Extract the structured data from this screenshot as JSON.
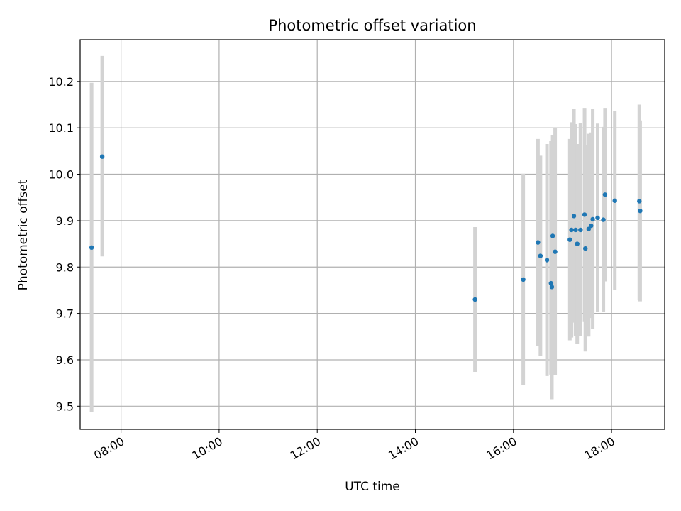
{
  "chart_data": {
    "type": "scatter",
    "title": "Photometric offset variation",
    "xlabel": "UTC time",
    "ylabel": "Photometric offset",
    "x_is_time": true,
    "xlim": [
      "07:10",
      "19:05"
    ],
    "ylim": [
      9.45,
      10.29
    ],
    "xticks": [
      "08:00",
      "10:00",
      "12:00",
      "14:00",
      "16:00",
      "18:00"
    ],
    "yticks": [
      "9.5",
      "9.6",
      "9.7",
      "9.8",
      "9.9",
      "10.0",
      "10.1",
      "10.2"
    ],
    "grid": true,
    "colors": {
      "point": "#1f77b4",
      "errorbar": "#d3d3d3",
      "grid": "#b0b0b0",
      "axes": "#000000"
    },
    "points": [
      {
        "t": "07:24",
        "y": 9.842,
        "lo": 9.487,
        "hi": 10.197
      },
      {
        "t": "07:37",
        "y": 10.038,
        "lo": 9.823,
        "hi": 10.255
      },
      {
        "t": "15:13",
        "y": 9.73,
        "lo": 9.574,
        "hi": 9.886
      },
      {
        "t": "16:12",
        "y": 9.773,
        "lo": 9.545,
        "hi": 10.001
      },
      {
        "t": "16:30",
        "y": 9.853,
        "lo": 9.63,
        "hi": 10.076
      },
      {
        "t": "16:33",
        "y": 9.824,
        "lo": 9.608,
        "hi": 10.04
      },
      {
        "t": "16:41",
        "y": 9.815,
        "lo": 9.565,
        "hi": 10.065
      },
      {
        "t": "16:46",
        "y": 9.765,
        "lo": 9.568,
        "hi": 10.072
      },
      {
        "t": "16:47",
        "y": 9.757,
        "lo": 9.515,
        "hi": 9.93
      },
      {
        "t": "16:48",
        "y": 9.867,
        "lo": 9.64,
        "hi": 10.085
      },
      {
        "t": "16:51",
        "y": 9.833,
        "lo": 9.567,
        "hi": 10.099
      },
      {
        "t": "17:09",
        "y": 9.859,
        "lo": 9.642,
        "hi": 10.076
      },
      {
        "t": "17:11",
        "y": 9.88,
        "lo": 9.648,
        "hi": 10.112
      },
      {
        "t": "17:14",
        "y": 9.91,
        "lo": 9.68,
        "hi": 10.14
      },
      {
        "t": "17:16",
        "y": 9.88,
        "lo": 9.652,
        "hi": 10.108
      },
      {
        "t": "17:18",
        "y": 9.85,
        "lo": 9.635,
        "hi": 10.065
      },
      {
        "t": "17:22",
        "y": 9.88,
        "lo": 9.652,
        "hi": 10.11
      },
      {
        "t": "17:27",
        "y": 9.913,
        "lo": 9.683,
        "hi": 10.143
      },
      {
        "t": "17:28",
        "y": 9.84,
        "lo": 9.618,
        "hi": 10.062
      },
      {
        "t": "17:32",
        "y": 9.882,
        "lo": 9.65,
        "hi": 10.087
      },
      {
        "t": "17:35",
        "y": 9.889,
        "lo": 9.69,
        "hi": 10.09
      },
      {
        "t": "17:37",
        "y": 9.903,
        "lo": 9.666,
        "hi": 10.14
      },
      {
        "t": "17:43",
        "y": 9.906,
        "lo": 9.703,
        "hi": 10.109
      },
      {
        "t": "17:50",
        "y": 9.902,
        "lo": 9.703,
        "hi": 10.102
      },
      {
        "t": "17:52",
        "y": 9.956,
        "lo": 9.769,
        "hi": 10.143
      },
      {
        "t": "18:04",
        "y": 9.943,
        "lo": 9.75,
        "hi": 10.136
      },
      {
        "t": "18:34",
        "y": 9.942,
        "lo": 9.73,
        "hi": 10.15
      },
      {
        "t": "18:35",
        "y": 9.921,
        "lo": 9.726,
        "hi": 10.116
      }
    ]
  }
}
